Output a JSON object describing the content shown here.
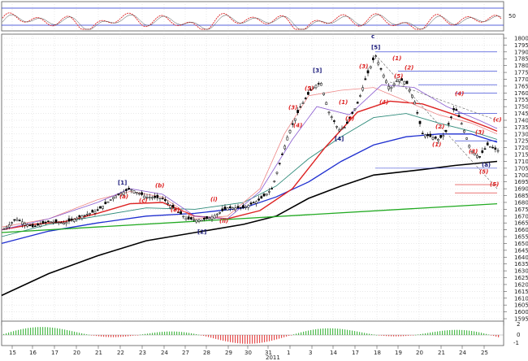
{
  "chart_data": {
    "type": "candlestick",
    "year_label": "2011",
    "x_ticks": [
      "15",
      "16",
      "17",
      "20",
      "21",
      "22",
      "23",
      "24",
      "27",
      "28",
      "29",
      "30",
      "31",
      "1",
      "3",
      "4",
      "5",
      "6",
      "7",
      "10",
      "11",
      "12",
      "13",
      "14",
      "17",
      "18",
      "19",
      "20",
      "21",
      "24",
      "25"
    ],
    "x_labels": [
      "15",
      "16",
      "17",
      "20",
      "21",
      "22",
      "23",
      "24",
      "27",
      "28",
      "29",
      "30",
      "31",
      "1",
      "3",
      "14",
      "17",
      "18",
      "19",
      "20",
      "21",
      "24",
      "25"
    ],
    "price_axis": {
      "min": 1595,
      "max": 1800,
      "step": 5,
      "labels": [
        "1800",
        "1795",
        "1790",
        "1785",
        "1780",
        "1775",
        "1770",
        "1765",
        "1760",
        "1755",
        "1750",
        "1745",
        "1740",
        "1735",
        "1730",
        "1725",
        "1720",
        "1715",
        "1710",
        "1705",
        "1700",
        "1695",
        "1690",
        "1685",
        "1680",
        "1675",
        "1670",
        "1665",
        "1660",
        "1655",
        "1650",
        "1645",
        "1640",
        "1635",
        "1630",
        "1625",
        "1620",
        "1615",
        "1610",
        "1605",
        "1600",
        "1595"
      ]
    },
    "oscillator_top": {
      "labels": [
        "50"
      ],
      "min": 0,
      "max": 100,
      "upper": 80,
      "lower": 20
    },
    "oscillator_bottom": {
      "labels": [
        "2",
        "0",
        "-1"
      ],
      "min": -2,
      "max": 2
    },
    "series": [
      {
        "name": "ma-black",
        "color": "#000000"
      },
      {
        "name": "ma-blue",
        "color": "#1f2fd0"
      },
      {
        "name": "ma-teal",
        "color": "#2e8b7a"
      },
      {
        "name": "ma-red",
        "color": "#dd2222"
      },
      {
        "name": "ma-green-trend",
        "color": "#22aa22"
      }
    ],
    "wave_labels": [
      {
        "text": "[1]",
        "x_index": 150,
        "price": 1693
      },
      {
        "text": "[2]",
        "x_index": 248,
        "price": 1657
      },
      {
        "text": "[3]",
        "x_index": 390,
        "price": 1775
      },
      {
        "text": "[4]",
        "x_index": 417,
        "price": 1725
      },
      {
        "text": "[5]",
        "x_index": 462,
        "price": 1792
      },
      {
        "text": "c",
        "x_index": 462,
        "price": 1800
      },
      {
        "text": "(a)",
        "x_index": 598,
        "price": 1706
      }
    ],
    "minor_labels": [
      {
        "text": "(b)",
        "p": 1691,
        "x": 196
      },
      {
        "text": "(c)",
        "p": 1680,
        "x": 176
      },
      {
        "text": "(a)",
        "p": 1683,
        "x": 152
      },
      {
        "text": "(e)",
        "p": 1673,
        "x": 215
      },
      {
        "text": "(i)",
        "p": 1681,
        "x": 264
      },
      {
        "text": "(ii)",
        "p": 1665,
        "x": 275
      },
      {
        "text": "(3)",
        "p": 1748,
        "x": 360
      },
      {
        "text": "(4)",
        "p": 1735,
        "x": 366
      },
      {
        "text": "(5)",
        "p": 1762,
        "x": 380
      },
      {
        "text": "(1)",
        "p": 1752,
        "x": 422
      },
      {
        "text": "(2)",
        "p": 1740,
        "x": 430
      },
      {
        "text": "(3)",
        "p": 1778,
        "x": 447
      },
      {
        "text": "(4)",
        "p": 1752,
        "x": 472
      },
      {
        "text": "(5)",
        "p": 1771,
        "x": 490
      },
      {
        "text": "(1)",
        "p": 1784,
        "x": 488
      },
      {
        "text": "(2)",
        "p": 1777,
        "x": 503
      },
      {
        "text": "(1)",
        "p": 1721,
        "x": 537
      },
      {
        "text": "(2)",
        "p": 1734,
        "x": 541
      },
      {
        "text": "(4)",
        "p": 1758,
        "x": 565
      },
      {
        "text": "(3)",
        "p": 1730,
        "x": 590
      },
      {
        "text": "(c)",
        "p": 1739,
        "x": 612
      },
      {
        "text": "(3)",
        "p": 1716,
        "x": 582
      },
      {
        "text": "(5)",
        "p": 1701,
        "x": 595
      },
      {
        "text": "(5)",
        "p": 1692,
        "x": 608
      }
    ]
  }
}
